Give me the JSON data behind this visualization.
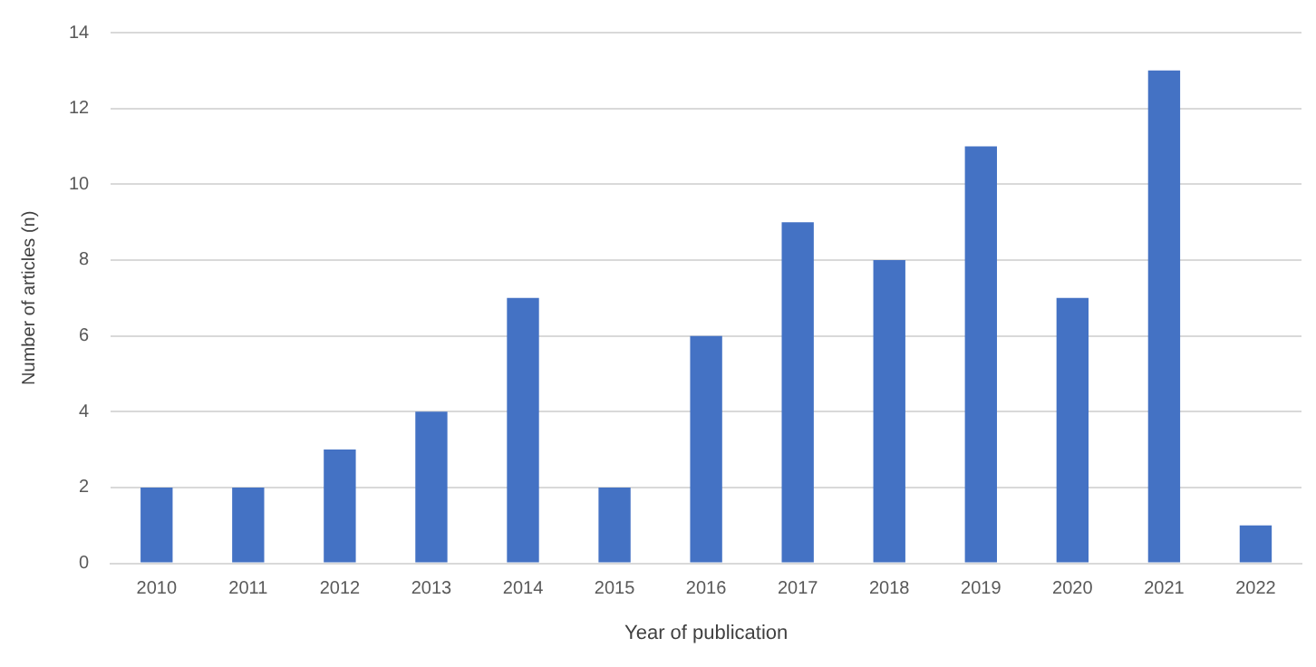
{
  "chart_data": {
    "type": "bar",
    "xlabel": "Year of publication",
    "ylabel": "Number of articles (n)",
    "categories": [
      "2010",
      "2011",
      "2012",
      "2013",
      "2014",
      "2015",
      "2016",
      "2017",
      "2018",
      "2019",
      "2020",
      "2021",
      "2022"
    ],
    "values": [
      2,
      2,
      3,
      4,
      7,
      2,
      6,
      9,
      8,
      11,
      7,
      13,
      1
    ],
    "color": "#4472c4",
    "ylim": [
      0,
      14
    ],
    "yticks": [
      0,
      2,
      4,
      6,
      8,
      10,
      12,
      14
    ],
    "grid": "y",
    "legend": false
  }
}
